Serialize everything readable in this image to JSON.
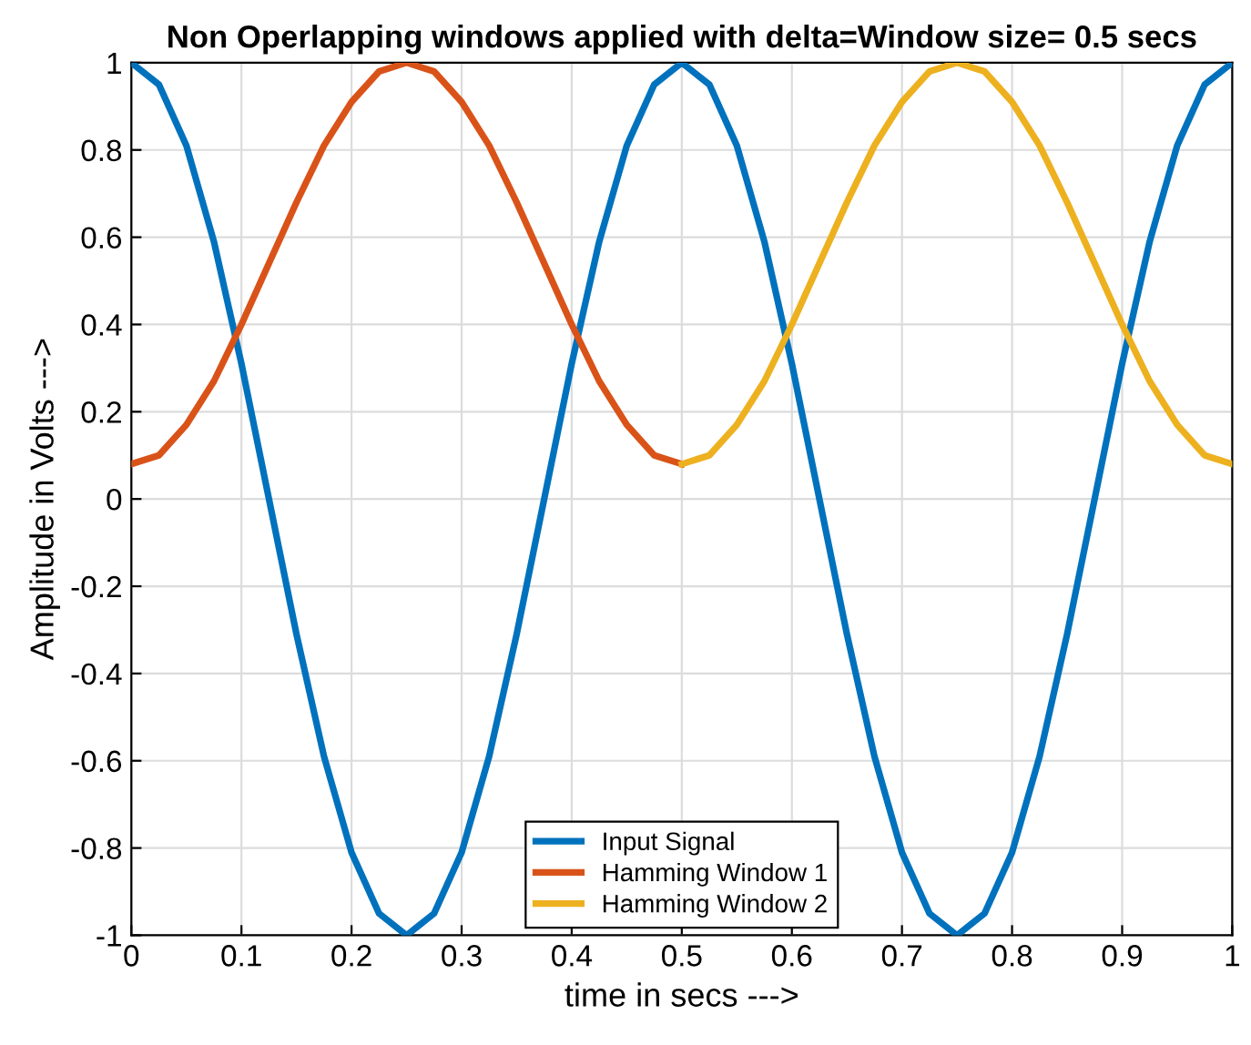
{
  "chart_data": {
    "type": "line",
    "title": "Non Operlapping windows applied with delta=Window size= 0.5 secs",
    "xlabel": "time in secs --->",
    "ylabel": "Amplitude in Volts --->",
    "series": [
      {
        "name": "Input Signal",
        "color": "#0072bd",
        "x": [
          0,
          0.025,
          0.05,
          0.075,
          0.1,
          0.125,
          0.15,
          0.175,
          0.2,
          0.225,
          0.25,
          0.275,
          0.3,
          0.325,
          0.35,
          0.375,
          0.4,
          0.425,
          0.45,
          0.475,
          0.5,
          0.525,
          0.55,
          0.575,
          0.6,
          0.625,
          0.65,
          0.675,
          0.7,
          0.725,
          0.75,
          0.775,
          0.8,
          0.825,
          0.85,
          0.875,
          0.9,
          0.925,
          0.95,
          0.975,
          1
        ],
        "values": [
          1,
          0.95,
          0.81,
          0.59,
          0.31,
          0,
          -0.31,
          -0.59,
          -0.81,
          -0.95,
          -1,
          -0.95,
          -0.81,
          -0.59,
          -0.31,
          0,
          0.31,
          0.59,
          0.81,
          0.95,
          1,
          0.95,
          0.81,
          0.59,
          0.31,
          0,
          -0.31,
          -0.59,
          -0.81,
          -0.95,
          -1,
          -0.95,
          -0.81,
          -0.59,
          -0.31,
          0,
          0.31,
          0.59,
          0.81,
          0.95,
          1
        ]
      },
      {
        "name": "Hamming Window 1",
        "color": "#d95319",
        "x": [
          0,
          0.025,
          0.05,
          0.075,
          0.1,
          0.125,
          0.15,
          0.175,
          0.2,
          0.225,
          0.25,
          0.275,
          0.3,
          0.325,
          0.35,
          0.375,
          0.4,
          0.425,
          0.45,
          0.475,
          0.5
        ],
        "values": [
          0.08,
          0.1,
          0.17,
          0.27,
          0.4,
          0.54,
          0.68,
          0.81,
          0.91,
          0.98,
          1,
          0.98,
          0.91,
          0.81,
          0.68,
          0.54,
          0.4,
          0.27,
          0.17,
          0.1,
          0.08
        ]
      },
      {
        "name": "Hamming Window 2",
        "color": "#edb120",
        "x": [
          0.5,
          0.525,
          0.55,
          0.575,
          0.6,
          0.625,
          0.65,
          0.675,
          0.7,
          0.725,
          0.75,
          0.775,
          0.8,
          0.825,
          0.85,
          0.875,
          0.9,
          0.925,
          0.95,
          0.975,
          1
        ],
        "values": [
          0.08,
          0.1,
          0.17,
          0.27,
          0.4,
          0.54,
          0.68,
          0.81,
          0.91,
          0.98,
          1,
          0.98,
          0.91,
          0.81,
          0.68,
          0.54,
          0.4,
          0.27,
          0.17,
          0.1,
          0.08
        ]
      }
    ],
    "xlim": [
      0,
      1
    ],
    "ylim": [
      -1,
      1
    ],
    "xticks": [
      0,
      0.1,
      0.2,
      0.3,
      0.4,
      0.5,
      0.6,
      0.7,
      0.8,
      0.9,
      1
    ],
    "yticks": [
      -1,
      -0.8,
      -0.6,
      -0.4,
      -0.2,
      0,
      0.2,
      0.4,
      0.6,
      0.8,
      1
    ],
    "grid": true,
    "legend": "bottom",
    "line_style": "solid",
    "marker": "none"
  }
}
